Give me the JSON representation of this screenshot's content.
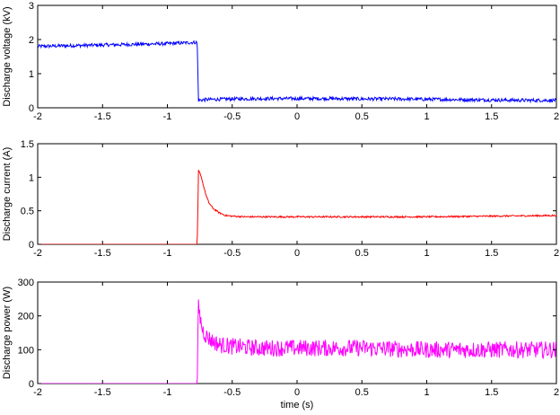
{
  "chart_data": [
    {
      "type": "line",
      "title": "",
      "xlabel": "",
      "ylabel": "Discharge voltage (kV)",
      "xlim": [
        -2,
        2
      ],
      "ylim": [
        0,
        3
      ],
      "xticks": [
        -2,
        -1.5,
        -1,
        -0.5,
        0,
        0.5,
        1,
        1.5,
        2
      ],
      "xtick_labels": [
        "-2",
        "-1.5",
        "-1",
        "-0.5",
        "0",
        "0.5",
        "1",
        "1.5",
        "2"
      ],
      "yticks": [
        0,
        1,
        2,
        3
      ],
      "ytick_labels": [
        "0",
        "1",
        "2",
        "3"
      ],
      "grid": false,
      "series": [
        {
          "color": "#0000ff",
          "noise": 0.05,
          "x": [
            -2,
            -1.75,
            -1.5,
            -1.25,
            -1.0,
            -0.77,
            -0.76,
            -0.7,
            -0.5,
            -0.25,
            0,
            0.25,
            0.5,
            0.75,
            1.0,
            1.25,
            1.5,
            1.75,
            2.0
          ],
          "y": [
            1.8,
            1.82,
            1.84,
            1.86,
            1.88,
            1.92,
            0.22,
            0.24,
            0.26,
            0.27,
            0.27,
            0.27,
            0.26,
            0.26,
            0.25,
            0.24,
            0.23,
            0.22,
            0.22
          ]
        }
      ]
    },
    {
      "type": "line",
      "title": "",
      "xlabel": "",
      "ylabel": "Discharge current (A)",
      "xlim": [
        -2,
        2
      ],
      "ylim": [
        0,
        1.5
      ],
      "xticks": [
        -2,
        -1.5,
        -1,
        -0.5,
        0,
        0.5,
        1,
        1.5,
        2
      ],
      "xtick_labels": [
        "-2",
        "-1.5",
        "-1",
        "-0.5",
        "0",
        "0.5",
        "1",
        "1.5",
        "2"
      ],
      "yticks": [
        0,
        0.5,
        1,
        1.5
      ],
      "ytick_labels": [
        "0",
        "0.5",
        "1",
        "1.5"
      ],
      "grid": false,
      "series": [
        {
          "color": "#ff0000",
          "noise": 0.012,
          "x": [
            -2,
            -1.5,
            -1.0,
            -0.77,
            -0.765,
            -0.76,
            -0.74,
            -0.72,
            -0.7,
            -0.68,
            -0.65,
            -0.6,
            -0.55,
            -0.5,
            -0.4,
            -0.2,
            0,
            0.5,
            1.0,
            1.5,
            2.0
          ],
          "y": [
            0,
            0,
            0,
            0,
            0.5,
            1.1,
            1.02,
            0.86,
            0.72,
            0.62,
            0.54,
            0.47,
            0.43,
            0.42,
            0.41,
            0.41,
            0.41,
            0.41,
            0.41,
            0.42,
            0.43
          ]
        }
      ]
    },
    {
      "type": "line",
      "title": "",
      "xlabel": "time (s)",
      "ylabel": "Discharge power (W)",
      "xlim": [
        -2,
        2
      ],
      "ylim": [
        0,
        300
      ],
      "xticks": [
        -2,
        -1.5,
        -1,
        -0.5,
        0,
        0.5,
        1,
        1.5,
        2
      ],
      "xtick_labels": [
        "-2",
        "-1.5",
        "-1",
        "-0.5",
        "0",
        "0.5",
        "1",
        "1.5",
        "2"
      ],
      "yticks": [
        0,
        100,
        200,
        300
      ],
      "ytick_labels": [
        "0",
        "100",
        "200",
        "300"
      ],
      "grid": false,
      "series": [
        {
          "color": "#ff00ff",
          "noise": 25,
          "x": [
            -2,
            -1.5,
            -1.0,
            -0.77,
            -0.765,
            -0.76,
            -0.75,
            -0.73,
            -0.7,
            -0.65,
            -0.6,
            -0.5,
            -0.3,
            0,
            0.5,
            1.0,
            1.5,
            2.0
          ],
          "y": [
            0,
            0,
            0,
            0,
            120,
            230,
            200,
            160,
            140,
            125,
            115,
            110,
            105,
            105,
            105,
            100,
            100,
            100
          ]
        }
      ]
    }
  ]
}
